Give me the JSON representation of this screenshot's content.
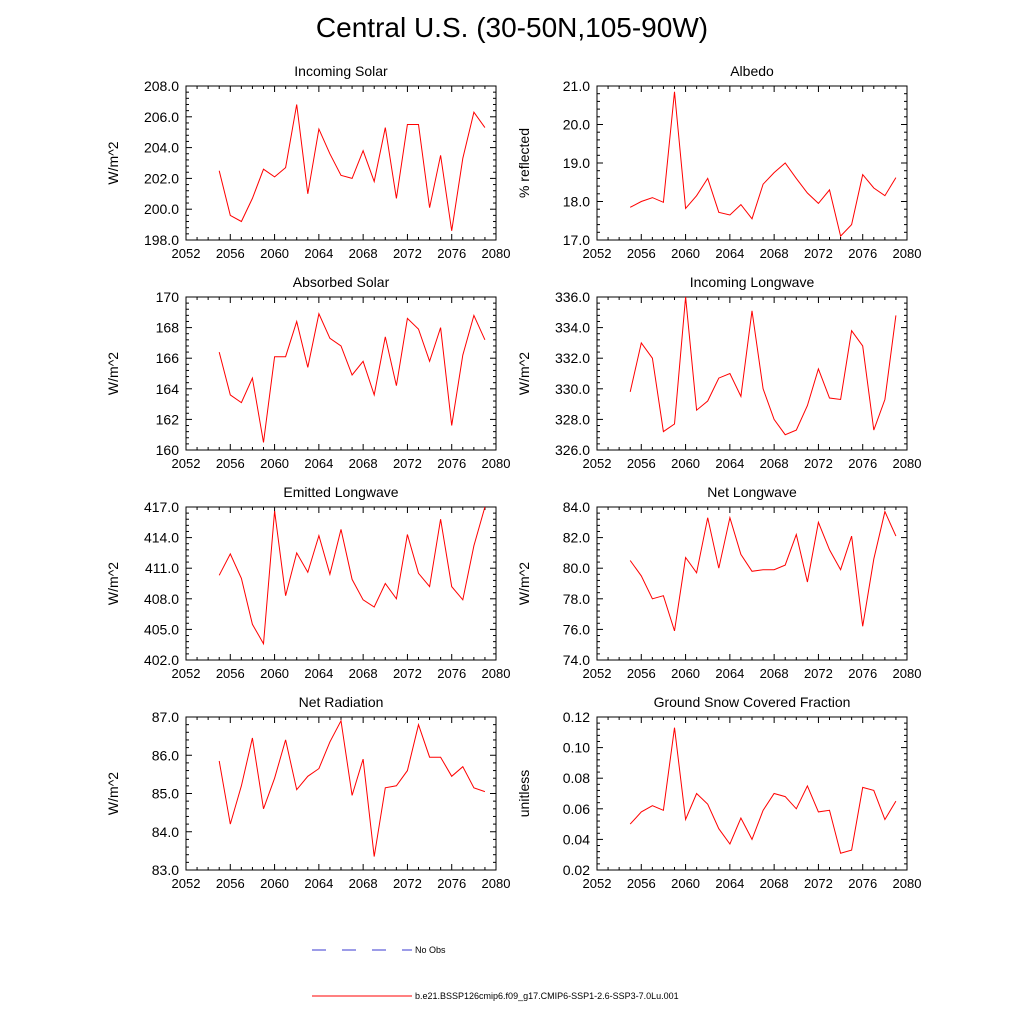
{
  "title": "Central U.S. (30-50N,105-90W)",
  "colors": {
    "model": "#ff0000",
    "obs": "#3a3ad0",
    "axis": "#000000"
  },
  "legend": {
    "obs_label": "No Obs",
    "model_label": "b.e21.BSSP126cmip6.f09_g17.CMIP6-SSP1-2.6-SSP3-7.0Lu.001"
  },
  "chart_data": [
    {
      "type": "line",
      "title": "Incoming Solar",
      "ylabel": "W/m^2",
      "xlim": [
        2052,
        2080
      ],
      "ylim": [
        198,
        208
      ],
      "xticks": [
        "2052",
        "2056",
        "2060",
        "2064",
        "2068",
        "2072",
        "2076",
        "2080"
      ],
      "yticks": [
        "198.0",
        "200.0",
        "202.0",
        "204.0",
        "206.0",
        "208.0"
      ],
      "grid": false,
      "x": [
        2055,
        2056,
        2057,
        2058,
        2059,
        2060,
        2061,
        2062,
        2063,
        2064,
        2065,
        2066,
        2067,
        2068,
        2069,
        2070,
        2071,
        2072,
        2073,
        2074,
        2075,
        2076,
        2077,
        2078,
        2079
      ],
      "values": [
        202.5,
        199.6,
        199.2,
        200.7,
        202.6,
        202.1,
        202.7,
        206.8,
        201.0,
        205.2,
        203.6,
        202.2,
        202.0,
        203.8,
        201.8,
        205.3,
        200.7,
        205.5,
        205.5,
        200.1,
        203.5,
        198.6,
        203.3,
        206.3,
        205.3
      ]
    },
    {
      "type": "line",
      "title": "Albedo",
      "ylabel": "% reflected",
      "xlim": [
        2052,
        2080
      ],
      "ylim": [
        17,
        21
      ],
      "xticks": [
        "2052",
        "2056",
        "2060",
        "2064",
        "2068",
        "2072",
        "2076",
        "2080"
      ],
      "yticks": [
        "17.0",
        "18.0",
        "19.0",
        "20.0",
        "21.0"
      ],
      "grid": false,
      "x": [
        2055,
        2056,
        2057,
        2058,
        2059,
        2060,
        2061,
        2062,
        2063,
        2064,
        2065,
        2066,
        2067,
        2068,
        2069,
        2070,
        2071,
        2072,
        2073,
        2074,
        2075,
        2076,
        2077,
        2078,
        2079
      ],
      "values": [
        17.85,
        18.0,
        18.1,
        17.98,
        20.85,
        17.82,
        18.15,
        18.6,
        17.72,
        17.65,
        17.92,
        17.55,
        18.45,
        18.75,
        19.0,
        18.6,
        18.22,
        17.95,
        18.3,
        17.1,
        17.4,
        18.7,
        18.35,
        18.15,
        18.62
      ]
    },
    {
      "type": "line",
      "title": "Absorbed Solar",
      "ylabel": "W/m^2",
      "xlim": [
        2052,
        2080
      ],
      "ylim": [
        160,
        170
      ],
      "xticks": [
        "2052",
        "2056",
        "2060",
        "2064",
        "2068",
        "2072",
        "2076",
        "2080"
      ],
      "yticks": [
        "160",
        "162",
        "164",
        "166",
        "168",
        "170"
      ],
      "grid": false,
      "x": [
        2055,
        2056,
        2057,
        2058,
        2059,
        2060,
        2061,
        2062,
        2063,
        2064,
        2065,
        2066,
        2067,
        2068,
        2069,
        2070,
        2071,
        2072,
        2073,
        2074,
        2075,
        2076,
        2077,
        2078,
        2079
      ],
      "values": [
        166.4,
        163.6,
        163.1,
        164.7,
        160.5,
        166.1,
        166.1,
        168.4,
        165.4,
        168.9,
        167.3,
        166.8,
        164.9,
        165.8,
        163.6,
        167.4,
        164.2,
        168.6,
        167.9,
        165.8,
        168.0,
        161.6,
        166.2,
        168.8,
        167.2
      ]
    },
    {
      "type": "line",
      "title": "Incoming Longwave",
      "ylabel": "W/m^2",
      "xlim": [
        2052,
        2080
      ],
      "ylim": [
        326,
        336
      ],
      "xticks": [
        "2052",
        "2056",
        "2060",
        "2064",
        "2068",
        "2072",
        "2076",
        "2080"
      ],
      "yticks": [
        "326.0",
        "328.0",
        "330.0",
        "332.0",
        "334.0",
        "336.0"
      ],
      "grid": false,
      "x": [
        2055,
        2056,
        2057,
        2058,
        2059,
        2060,
        2061,
        2062,
        2063,
        2064,
        2065,
        2066,
        2067,
        2068,
        2069,
        2070,
        2071,
        2072,
        2073,
        2074,
        2075,
        2076,
        2077,
        2078,
        2079
      ],
      "values": [
        329.8,
        333.0,
        332.0,
        327.2,
        327.7,
        336.0,
        328.6,
        329.2,
        330.7,
        331.0,
        329.5,
        335.1,
        330.0,
        328.0,
        327.0,
        327.3,
        328.9,
        331.3,
        329.4,
        329.3,
        333.8,
        332.8,
        327.3,
        329.3,
        334.8
      ]
    },
    {
      "type": "line",
      "title": "Emitted Longwave",
      "ylabel": "W/m^2",
      "xlim": [
        2052,
        2080
      ],
      "ylim": [
        402,
        417
      ],
      "xticks": [
        "2052",
        "2056",
        "2060",
        "2064",
        "2068",
        "2072",
        "2076",
        "2080"
      ],
      "yticks": [
        "402.0",
        "405.0",
        "408.0",
        "411.0",
        "414.0",
        "417.0"
      ],
      "grid": false,
      "x": [
        2055,
        2056,
        2057,
        2058,
        2059,
        2060,
        2061,
        2062,
        2063,
        2064,
        2065,
        2066,
        2067,
        2068,
        2069,
        2070,
        2071,
        2072,
        2073,
        2074,
        2075,
        2076,
        2077,
        2078,
        2079
      ],
      "values": [
        410.3,
        412.4,
        410.0,
        405.5,
        403.6,
        416.6,
        408.3,
        412.5,
        410.6,
        414.2,
        410.4,
        414.8,
        409.9,
        407.9,
        407.2,
        409.5,
        408.0,
        414.3,
        410.5,
        409.2,
        415.8,
        409.2,
        407.9,
        413.2,
        417.0
      ]
    },
    {
      "type": "line",
      "title": "Net Longwave",
      "ylabel": "W/m^2",
      "xlim": [
        2052,
        2080
      ],
      "ylim": [
        74,
        84
      ],
      "xticks": [
        "2052",
        "2056",
        "2060",
        "2064",
        "2068",
        "2072",
        "2076",
        "2080"
      ],
      "yticks": [
        "74.0",
        "76.0",
        "78.0",
        "80.0",
        "82.0",
        "84.0"
      ],
      "grid": false,
      "x": [
        2055,
        2056,
        2057,
        2058,
        2059,
        2060,
        2061,
        2062,
        2063,
        2064,
        2065,
        2066,
        2067,
        2068,
        2069,
        2070,
        2071,
        2072,
        2073,
        2074,
        2075,
        2076,
        2077,
        2078,
        2079
      ],
      "values": [
        80.5,
        79.5,
        78.0,
        78.2,
        75.9,
        80.7,
        79.7,
        83.3,
        80.0,
        83.3,
        80.9,
        79.8,
        79.9,
        79.9,
        80.2,
        82.2,
        79.1,
        83.0,
        81.2,
        79.9,
        82.1,
        76.2,
        80.6,
        83.7,
        82.1
      ]
    },
    {
      "type": "line",
      "title": "Net Radiation",
      "ylabel": "W/m^2",
      "xlim": [
        2052,
        2080
      ],
      "ylim": [
        83,
        87
      ],
      "xticks": [
        "2052",
        "2056",
        "2060",
        "2064",
        "2068",
        "2072",
        "2076",
        "2080"
      ],
      "yticks": [
        "83.0",
        "84.0",
        "85.0",
        "86.0",
        "87.0"
      ],
      "grid": false,
      "x": [
        2055,
        2056,
        2057,
        2058,
        2059,
        2060,
        2061,
        2062,
        2063,
        2064,
        2065,
        2066,
        2067,
        2068,
        2069,
        2070,
        2071,
        2072,
        2073,
        2074,
        2075,
        2076,
        2077,
        2078,
        2079
      ],
      "values": [
        85.85,
        84.2,
        85.2,
        86.45,
        84.6,
        85.4,
        86.4,
        85.1,
        85.45,
        85.65,
        86.35,
        86.9,
        84.95,
        85.9,
        83.35,
        85.15,
        85.2,
        85.6,
        86.8,
        85.95,
        85.95,
        85.45,
        85.7,
        85.15,
        85.05
      ]
    },
    {
      "type": "line",
      "title": "Ground Snow Covered Fraction",
      "ylabel": "unitless",
      "xlim": [
        2052,
        2080
      ],
      "ylim": [
        0.02,
        0.12
      ],
      "xticks": [
        "2052",
        "2056",
        "2060",
        "2064",
        "2068",
        "2072",
        "2076",
        "2080"
      ],
      "yticks": [
        "0.02",
        "0.04",
        "0.06",
        "0.08",
        "0.10",
        "0.12"
      ],
      "grid": false,
      "x": [
        2055,
        2056,
        2057,
        2058,
        2059,
        2060,
        2061,
        2062,
        2063,
        2064,
        2065,
        2066,
        2067,
        2068,
        2069,
        2070,
        2071,
        2072,
        2073,
        2074,
        2075,
        2076,
        2077,
        2078,
        2079
      ],
      "values": [
        0.05,
        0.058,
        0.062,
        0.059,
        0.113,
        0.053,
        0.07,
        0.063,
        0.047,
        0.037,
        0.054,
        0.04,
        0.059,
        0.07,
        0.068,
        0.06,
        0.075,
        0.058,
        0.059,
        0.031,
        0.033,
        0.074,
        0.072,
        0.053,
        0.065
      ]
    }
  ]
}
